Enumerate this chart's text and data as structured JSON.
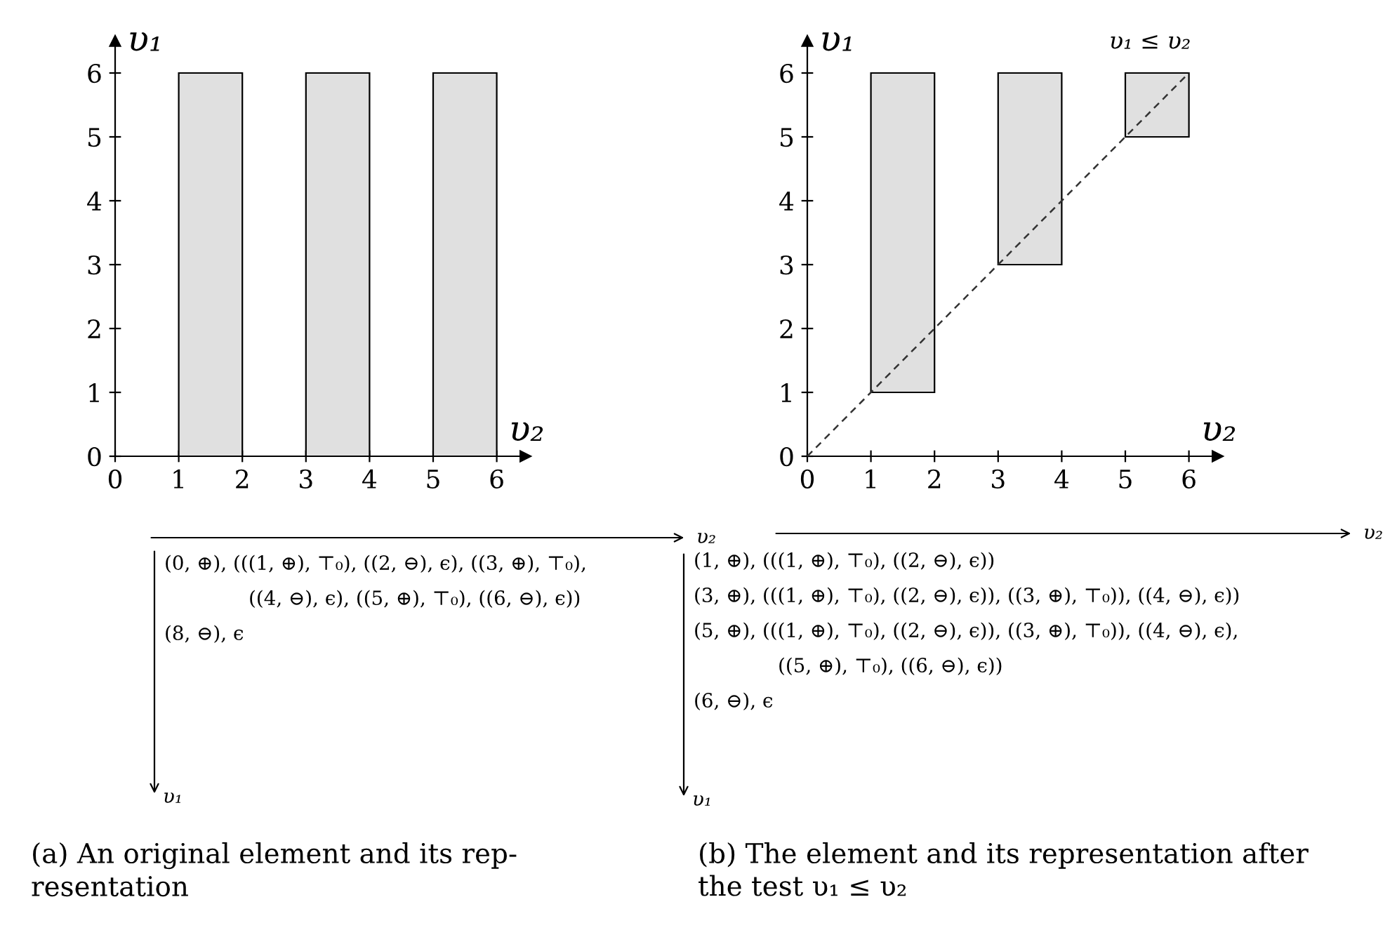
{
  "chart_data": [
    {
      "type": "bar",
      "xlabel": "υ₂",
      "ylabel": "υ₁",
      "xlim": [
        0,
        6.45
      ],
      "ylim": [
        0,
        6.5
      ],
      "xticks": [
        0,
        1,
        2,
        3,
        4,
        5,
        6
      ],
      "yticks": [
        0,
        1,
        2,
        3,
        4,
        5,
        6
      ],
      "series": [
        {
          "x": [
            1.5,
            3.5,
            5.5
          ],
          "values": [
            6,
            6,
            6
          ],
          "base": [
            0,
            0,
            0
          ],
          "color": "#e0e0e0"
        }
      ],
      "annotations": [
        "υ₂",
        "(0, ⊕), (((1, ⊕), ⊤₀), ((2, ⊖), ϵ), ((3, ⊕), ⊤₀),\n((4, ⊖), ϵ), ((5, ⊕), ⊤₀), ((6, ⊖), ϵ))",
        "(8, ⊖), ϵ",
        "υ₁",
        "(a) An original element and its rep-\nresentation"
      ]
    },
    {
      "type": "bar",
      "xlabel": "υ₂",
      "ylabel": "υ₁",
      "xlim": [
        0,
        6.45
      ],
      "ylim": [
        0,
        6.5
      ],
      "xticks": [
        0,
        1,
        2,
        3,
        4,
        5,
        6
      ],
      "yticks": [
        0,
        1,
        2,
        3,
        4,
        5,
        6
      ],
      "series": [
        {
          "x": [
            1.5,
            3.5,
            5.5
          ],
          "values": [
            5,
            3,
            1
          ],
          "base": [
            1,
            3,
            5
          ],
          "color": "#e0e0e0"
        },
        {
          "type": "line",
          "x": [
            0,
            6
          ],
          "values": [
            0,
            6
          ],
          "color": "#333333",
          "line_style": "dashed"
        }
      ],
      "annotations": [
        {
          "text": "υ₁ ≤ υ₂",
          "x": 6,
          "y": 6
        },
        "υ₂",
        "(1, ⊕), (((1, ⊕), ⊤₀), ((2, ⊖), ϵ))",
        "(3, ⊕), (((1, ⊕), ⊤₀), ((2, ⊖), ϵ)), ((3, ⊕), ⊤₀)), ((4, ⊖), ϵ))",
        "(5, ⊕), (((1, ⊕), ⊤₀), ((2, ⊖), ϵ)), ((3, ⊕), ⊤₀)), ((4, ⊖), ϵ),\n((5, ⊕), ⊤₀), ((6, ⊖), ϵ))",
        "(6, ⊖), ϵ",
        "υ₁",
        "(b) The element and its representation after\nthe test υ₁ ≤ υ₂"
      ]
    }
  ]
}
